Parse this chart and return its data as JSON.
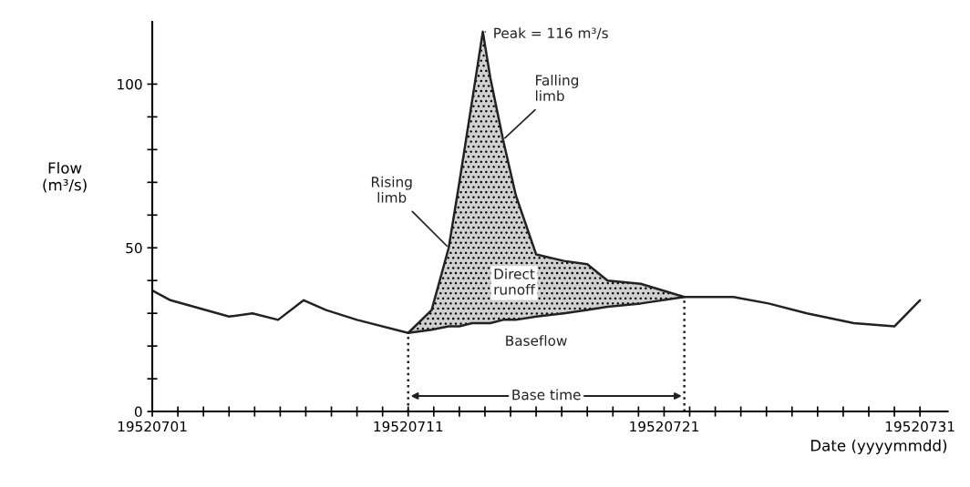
{
  "chart_data": {
    "type": "line",
    "xlabel": "Date (yyyymmdd)",
    "ylabel": "Flow\n(m³/s)",
    "xlim": [
      "1952-07-01",
      "1952-08-01T02:00"
    ],
    "ylim": [
      0,
      119
    ],
    "xticks": [
      {
        "value": "1952-07-01",
        "label": "19520701"
      },
      {
        "value": "1952-07-02",
        "label": null
      },
      {
        "value": "1952-07-03",
        "label": null
      },
      {
        "value": "1952-07-04",
        "label": null
      },
      {
        "value": "1952-07-05",
        "label": null
      },
      {
        "value": "1952-07-06",
        "label": null
      },
      {
        "value": "1952-07-07",
        "label": null
      },
      {
        "value": "1952-07-08",
        "label": null
      },
      {
        "value": "1952-07-09",
        "label": null
      },
      {
        "value": "1952-07-10",
        "label": null
      },
      {
        "value": "1952-07-11",
        "label": "19520711"
      },
      {
        "value": "1952-07-12",
        "label": null
      },
      {
        "value": "1952-07-13",
        "label": null
      },
      {
        "value": "1952-07-14",
        "label": null
      },
      {
        "value": "1952-07-15",
        "label": null
      },
      {
        "value": "1952-07-16",
        "label": null
      },
      {
        "value": "1952-07-17",
        "label": null
      },
      {
        "value": "1952-07-18",
        "label": null
      },
      {
        "value": "1952-07-19",
        "label": null
      },
      {
        "value": "1952-07-20",
        "label": null
      },
      {
        "value": "1952-07-21",
        "label": "19520721"
      },
      {
        "value": "1952-07-22",
        "label": null
      },
      {
        "value": "1952-07-23",
        "label": null
      },
      {
        "value": "1952-07-24",
        "label": null
      },
      {
        "value": "1952-07-25",
        "label": null
      },
      {
        "value": "1952-07-26",
        "label": null
      },
      {
        "value": "1952-07-27",
        "label": null
      },
      {
        "value": "1952-07-28",
        "label": null
      },
      {
        "value": "1952-07-29",
        "label": null
      },
      {
        "value": "1952-07-30",
        "label": null
      },
      {
        "value": "1952-07-31",
        "label": "19520731"
      }
    ],
    "yticks": [
      0,
      {
        "value": 10,
        "label": null
      },
      {
        "value": 20,
        "label": null
      },
      {
        "value": 30,
        "label": null
      },
      {
        "value": 40,
        "label": null
      },
      50,
      {
        "value": 60,
        "label": null
      },
      {
        "value": 70,
        "label": null
      },
      {
        "value": 80,
        "label": null
      },
      {
        "value": 90,
        "label": null
      },
      100
    ],
    "series": [
      {
        "type": "area",
        "color": "#d0d0d0",
        "x": [
          "1952-07-11",
          "1952-07-11T22:00",
          "1952-07-12T14:00",
          "1952-07-13",
          "1952-07-13T12:00",
          "1952-07-13T22:00",
          "1952-07-14T05:00",
          "1952-07-14T17:00",
          "1952-07-15T05:00",
          "1952-07-16",
          "1952-07-17T02:00",
          "1952-07-18",
          "1952-07-18T19:00",
          "1952-07-20T02:00",
          "1952-07-21T19:00"
        ],
        "values": [
          24,
          31,
          50,
          70,
          95,
          116,
          102,
          83,
          66,
          48,
          46,
          45,
          40,
          39,
          35
        ]
      },
      {
        "color": "#222222",
        "x": [
          "1952-07-01",
          "1952-07-01T17:00",
          "1952-07-04",
          "1952-07-04T22:00",
          "1952-07-05T22:00",
          "1952-07-06T22:00",
          "1952-07-07T19:00",
          "1952-07-09",
          "1952-07-11",
          "1952-07-11T22:00",
          "1952-07-12T14:00",
          "1952-07-13",
          "1952-07-13T12:00",
          "1952-07-13T22:00",
          "1952-07-14T05:00",
          "1952-07-14T17:00",
          "1952-07-15T05:00",
          "1952-07-16",
          "1952-07-17T02:00",
          "1952-07-18",
          "1952-07-18T19:00",
          "1952-07-20T02:00",
          "1952-07-21T19:00",
          "1952-07-23T17:00",
          "1952-07-25T02:00",
          "1952-07-26T14:00",
          "1952-07-28T10:00",
          "1952-07-30",
          "1952-07-31"
        ],
        "values": [
          37,
          34,
          29,
          30,
          28,
          34,
          31,
          28,
          24,
          31,
          50,
          70,
          95,
          116,
          102,
          83,
          66,
          48,
          46,
          45,
          40,
          39,
          35,
          35,
          33,
          30,
          27,
          26,
          34
        ]
      },
      {
        "type": "line",
        "color": "#222222",
        "x": [
          "1952-07-11",
          "1952-07-11T22:00",
          "1952-07-12T14:00",
          "1952-07-13",
          "1952-07-13T12:00",
          "1952-07-13T22:00",
          "1952-07-14T05:00",
          "1952-07-14T17:00",
          "1952-07-15T05:00",
          "1952-07-16",
          "1952-07-17T02:00",
          "1952-07-18",
          "1952-07-18T19:00",
          "1952-07-20T02:00",
          "1952-07-21T19:00"
        ],
        "values": [
          24,
          25,
          26,
          26,
          27,
          27,
          27,
          28,
          28,
          29,
          30,
          31,
          32,
          33,
          35
        ]
      }
    ],
    "ref_lines": [
      {
        "axis": "x",
        "value": "1952-07-11",
        "line_style": "dotted",
        "color": "#222222"
      },
      {
        "axis": "x",
        "value": "1952-07-21T19:00",
        "line_style": "dotted",
        "color": "#222222"
      }
    ],
    "annotations": [
      {
        "text": "Peak = 116 m³/s",
        "x": "1952-07-13T22:00",
        "y": 116
      },
      {
        "text": "Rising\nlimb",
        "x": "1952-07-12T14:00",
        "y": 50
      },
      {
        "text": "Falling\nlimb",
        "x": "1952-07-14T17:00",
        "y": 83
      },
      "Direct\nrunoff",
      {
        "text": "Baseflow",
        "x": "1952-07-16",
        "y": 29
      },
      "Base time"
    ],
    "grid": false,
    "legend": false
  }
}
